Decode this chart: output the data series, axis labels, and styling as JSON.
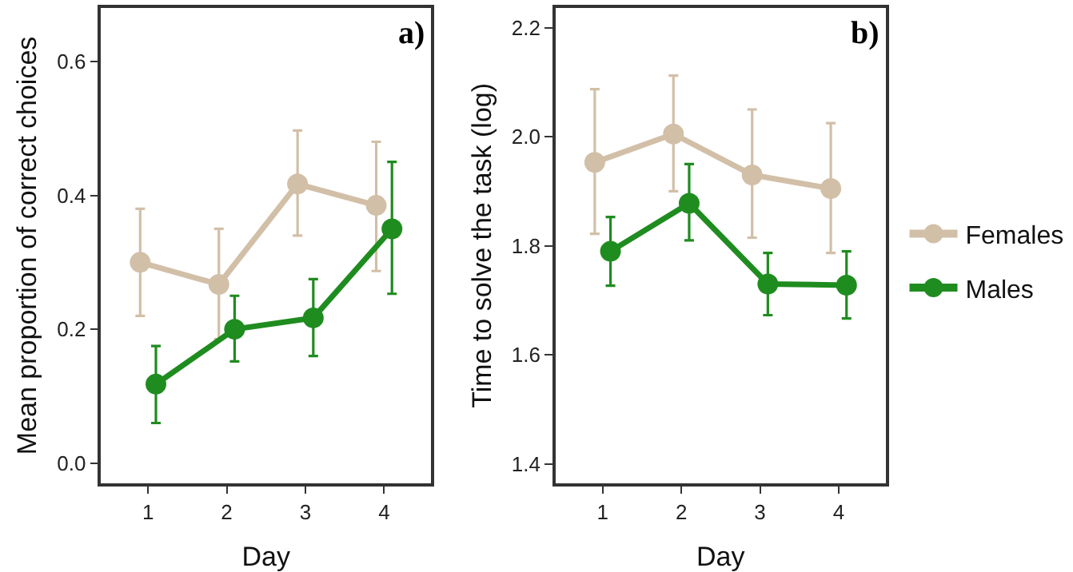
{
  "chart_data": [
    {
      "type": "line",
      "title": "a)",
      "xlabel": "Day",
      "ylabel": "Mean proportion of correct choices",
      "xlim": [
        0.4,
        4.6
      ],
      "xticks": [
        1,
        2,
        3,
        4
      ],
      "ylim": [
        -0.03,
        0.68
      ],
      "yticks": [
        {
          "value": 0.0,
          "label": "0.0"
        },
        0.2,
        0.4,
        0.6
      ],
      "legend": false,
      "marker": "circle",
      "line_style": "solid",
      "series": [
        {
          "color": "#d2bfa7",
          "x": [
            0.9,
            1.9,
            2.9,
            3.9
          ],
          "values": [
            0.3,
            0.267,
            0.417,
            0.385
          ],
          "errors": [
            [
              0.22,
              0.38
            ],
            [
              0.185,
              0.35
            ],
            [
              0.34,
              0.497
            ],
            [
              0.287,
              0.48
            ]
          ]
        },
        {
          "color": "#1f8c1f",
          "x": [
            1.1,
            2.1,
            3.1,
            4.1
          ],
          "values": [
            0.118,
            0.2,
            0.217,
            0.35
          ],
          "errors": [
            [
              0.06,
              0.175
            ],
            [
              0.152,
              0.25
            ],
            [
              0.16,
              0.275
            ],
            [
              0.253,
              0.45
            ]
          ]
        }
      ]
    },
    {
      "type": "line",
      "title": "b)",
      "xlabel": "Day",
      "ylabel": "Time to solve the task (log)",
      "xlim": [
        0.4,
        4.6
      ],
      "xticks": [
        1,
        2,
        3,
        4
      ],
      "ylim": [
        1.365,
        2.236
      ],
      "yticks": [
        {
          "value": 1.4,
          "label": "1.4"
        },
        {
          "value": 1.6,
          "label": "1.6"
        },
        {
          "value": 1.8,
          "label": "1.8"
        },
        {
          "value": 2.0,
          "label": "2.0"
        },
        {
          "value": 2.2,
          "label": "2.2"
        }
      ],
      "legend": "right",
      "marker": "circle",
      "line_style": "solid",
      "series": [
        {
          "name": "Females",
          "color": "#d2bfa7",
          "x": [
            0.9,
            1.9,
            2.9,
            3.9
          ],
          "values": [
            1.953,
            2.005,
            1.93,
            1.905
          ],
          "errors": [
            [
              1.822,
              2.087
            ],
            [
              1.9,
              2.112
            ],
            [
              1.815,
              2.05
            ],
            [
              1.787,
              2.025
            ]
          ]
        },
        {
          "name": "Males",
          "color": "#1f8c1f",
          "x": [
            1.1,
            2.1,
            3.1,
            4.1
          ],
          "values": [
            1.79,
            1.878,
            1.73,
            1.728
          ],
          "errors": [
            [
              1.727,
              1.853
            ],
            [
              1.81,
              1.95
            ],
            [
              1.673,
              1.787
            ],
            [
              1.667,
              1.79
            ]
          ]
        }
      ]
    }
  ]
}
